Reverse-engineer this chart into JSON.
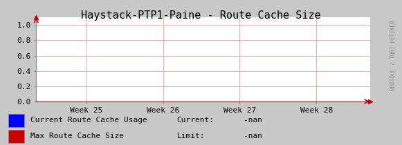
{
  "title": "Haystack-PTP1-Paine - Route Cache Size",
  "bg_color": "#c8c8c8",
  "plot_bg_color": "#ffffff",
  "grid_color": "#ff9999",
  "arrow_color": "#cc0000",
  "yticks": [
    0.0,
    0.2,
    0.4,
    0.6,
    0.8,
    1.0
  ],
  "ylim": [
    0.0,
    1.1
  ],
  "xtick_labels": [
    "Week 25",
    "Week 26",
    "Week 27",
    "Week 28"
  ],
  "xtick_positions": [
    0.15,
    0.38,
    0.61,
    0.84
  ],
  "xlim": [
    0.0,
    1.0
  ],
  "legend": [
    {
      "label": "Current Route Cache Usage",
      "color": "#0000ff"
    },
    {
      "label": "Max Route Cache Size",
      "color": "#cc0000"
    }
  ],
  "current_label": "Current:",
  "current_value": "    -nan",
  "limit_label": "Limit:",
  "limit_value": "    -nan",
  "watermark": "RRDTOOL / TOBI OETIKER",
  "title_fontsize": 11,
  "tick_fontsize": 8,
  "legend_fontsize": 8
}
